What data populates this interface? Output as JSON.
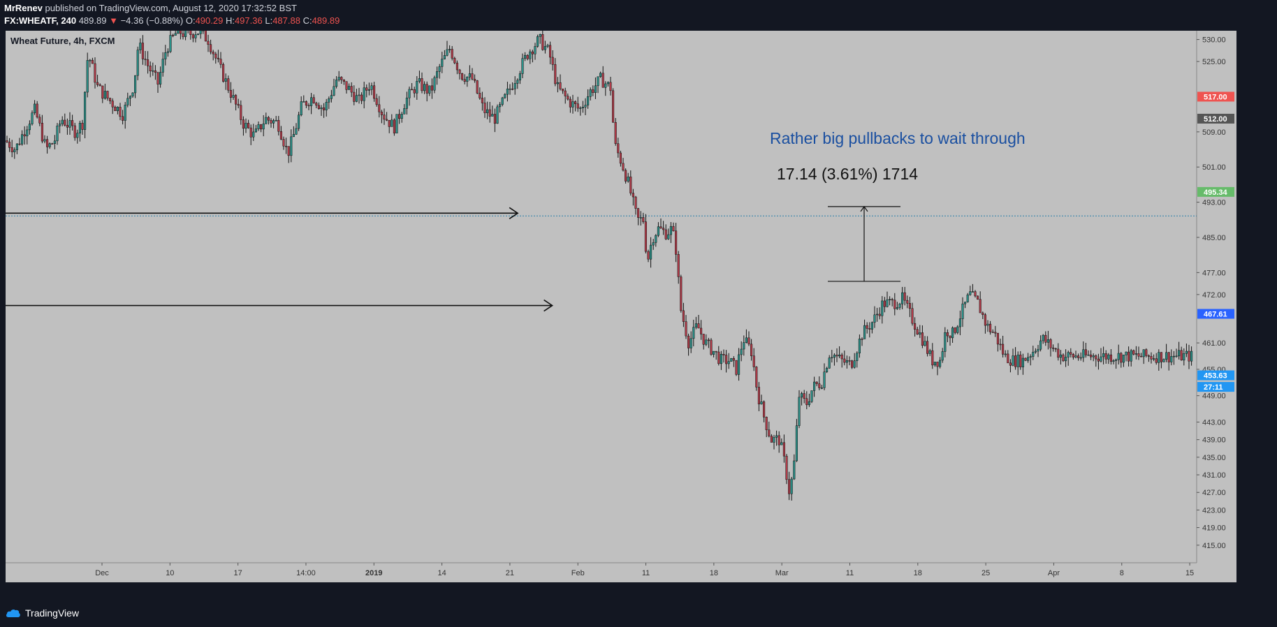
{
  "header": {
    "author": "MrRenev",
    "published": " published on TradingView.com, August 12, 2020 17:32:52 BST",
    "symbol": "FX:WHEATF, 240",
    "last": "489.89",
    "change": "−4.36 (−0.88%)",
    "o_label": "O:",
    "o": "490.29",
    "h_label": "H:",
    "h": "497.36",
    "l_label": "L:",
    "l": "487.88",
    "c_label": "C:",
    "c": "489.89"
  },
  "chart_title": "Wheat Future, 4h, FXCM",
  "annotation_text": "Rather big pullbacks to wait through",
  "measure_text": "17.14 (3.61%) 1714",
  "footer": {
    "brand": "TradingView"
  },
  "colors": {
    "up": "#26a69a",
    "down": "#ef5350",
    "candle_outline": "#000000",
    "annotation": "#1a4fa0",
    "background": "#c0c0c0"
  },
  "chart_data": {
    "type": "candlestick",
    "title": "Wheat Future, 4h, FXCM",
    "ylim": [
      411,
      532
    ],
    "y_ticks": [
      "530.00",
      "525.00",
      "509.00",
      "501.00",
      "493.00",
      "485.00",
      "477.00",
      "472.00",
      "461.00",
      "455.00",
      "449.00",
      "443.00",
      "439.00",
      "435.00",
      "431.00",
      "427.00",
      "423.00",
      "419.00",
      "415.00"
    ],
    "x_ticks": [
      "Dec",
      "10",
      "17",
      "14:00",
      "2019",
      "14",
      "21",
      "Feb",
      "11",
      "18",
      "Mar",
      "11",
      "18",
      "25",
      "Apr",
      "8",
      "15"
    ],
    "x_ticks_bold": [
      "2019"
    ],
    "price_badges": [
      {
        "label": "517.00",
        "value": 517.0,
        "color": "#ef5350"
      },
      {
        "label": "512.00",
        "value": 512.0,
        "color": "#555555"
      },
      {
        "label": "495.34",
        "value": 495.34,
        "color": "#66bb6a"
      },
      {
        "label": "467.61",
        "value": 467.61,
        "color": "#2962ff"
      },
      {
        "label": "453.63",
        "value": 453.63,
        "color": "#2196f3"
      },
      {
        "label": "27:11",
        "value": 451.0,
        "color": "#2196f3"
      }
    ],
    "horizontal_line_value": 489.89,
    "arrows": [
      {
        "value": 490.5,
        "x_end_fraction": 0.43
      },
      {
        "value": 469.5,
        "x_end_fraction": 0.459
      }
    ],
    "measure": {
      "top": 492.0,
      "bottom": 475.0
    },
    "path": [
      [
        0,
        507
      ],
      [
        14,
        505
      ],
      [
        32,
        511
      ],
      [
        42,
        514
      ],
      [
        58,
        505
      ],
      [
        70,
        507
      ],
      [
        80,
        512
      ],
      [
        100,
        509
      ],
      [
        110,
        511
      ],
      [
        118,
        527
      ],
      [
        132,
        519
      ],
      [
        150,
        516
      ],
      [
        168,
        513
      ],
      [
        184,
        520
      ],
      [
        190,
        529
      ],
      [
        204,
        524
      ],
      [
        218,
        520
      ],
      [
        230,
        528
      ],
      [
        246,
        532
      ],
      [
        260,
        531
      ],
      [
        274,
        532
      ],
      [
        290,
        530
      ],
      [
        308,
        523
      ],
      [
        322,
        518
      ],
      [
        340,
        511
      ],
      [
        356,
        508
      ],
      [
        372,
        512
      ],
      [
        390,
        511
      ],
      [
        404,
        504
      ],
      [
        412,
        508
      ],
      [
        424,
        515
      ],
      [
        440,
        517
      ],
      [
        456,
        514
      ],
      [
        474,
        521
      ],
      [
        490,
        519
      ],
      [
        506,
        516
      ],
      [
        522,
        520
      ],
      [
        540,
        513
      ],
      [
        556,
        510
      ],
      [
        572,
        516
      ],
      [
        590,
        520
      ],
      [
        608,
        518
      ],
      [
        622,
        524
      ],
      [
        636,
        528
      ],
      [
        652,
        522
      ],
      [
        668,
        521
      ],
      [
        684,
        514
      ],
      [
        700,
        512
      ],
      [
        716,
        517
      ],
      [
        732,
        522
      ],
      [
        748,
        527
      ],
      [
        764,
        530
      ],
      [
        778,
        527
      ],
      [
        790,
        519
      ],
      [
        806,
        516
      ],
      [
        822,
        514
      ],
      [
        836,
        518
      ],
      [
        852,
        521
      ],
      [
        866,
        519
      ],
      [
        872,
        506
      ],
      [
        882,
        502
      ],
      [
        892,
        497
      ],
      [
        904,
        489
      ],
      [
        914,
        489
      ],
      [
        918,
        479
      ],
      [
        926,
        485
      ],
      [
        934,
        487
      ],
      [
        946,
        486
      ],
      [
        954,
        487
      ],
      [
        960,
        482
      ],
      [
        966,
        469
      ],
      [
        978,
        461
      ],
      [
        990,
        465
      ],
      [
        1002,
        461
      ],
      [
        1014,
        459
      ],
      [
        1024,
        457
      ],
      [
        1036,
        457
      ],
      [
        1046,
        455
      ],
      [
        1056,
        462
      ],
      [
        1068,
        459
      ],
      [
        1076,
        450
      ],
      [
        1086,
        444
      ],
      [
        1096,
        439
      ],
      [
        1108,
        439
      ],
      [
        1116,
        433
      ],
      [
        1122,
        427
      ],
      [
        1128,
        432
      ],
      [
        1136,
        449
      ],
      [
        1146,
        447
      ],
      [
        1156,
        451
      ],
      [
        1168,
        452
      ],
      [
        1180,
        459
      ],
      [
        1196,
        457
      ],
      [
        1210,
        456
      ],
      [
        1226,
        463
      ],
      [
        1242,
        466
      ],
      [
        1256,
        470
      ],
      [
        1270,
        470
      ],
      [
        1284,
        471
      ],
      [
        1296,
        467
      ],
      [
        1312,
        462
      ],
      [
        1326,
        457
      ],
      [
        1338,
        457
      ],
      [
        1346,
        464
      ],
      [
        1356,
        463
      ],
      [
        1366,
        467
      ],
      [
        1380,
        472
      ],
      [
        1392,
        470
      ],
      [
        1404,
        465
      ],
      [
        1416,
        463
      ],
      [
        1430,
        458
      ],
      [
        1442,
        457
      ],
      [
        1456,
        457
      ],
      [
        1470,
        459
      ],
      [
        1484,
        462
      ],
      [
        1498,
        460
      ],
      [
        1512,
        458
      ]
    ]
  }
}
